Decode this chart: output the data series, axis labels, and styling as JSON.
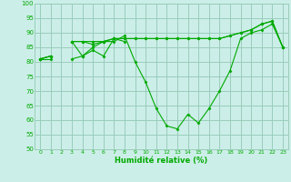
{
  "background_color": "#cceee8",
  "grid_color": "#99ccbb",
  "line_color": "#00aa00",
  "marker_color": "#00aa00",
  "xlabel": "Humidité relative (%)",
  "xlabel_color": "#00aa00",
  "ylim": [
    50,
    100
  ],
  "xlim": [
    -0.5,
    23.5
  ],
  "yticks": [
    50,
    55,
    60,
    65,
    70,
    75,
    80,
    85,
    90,
    95,
    100
  ],
  "xticks": [
    0,
    1,
    2,
    3,
    4,
    5,
    6,
    7,
    8,
    9,
    10,
    11,
    12,
    13,
    14,
    15,
    16,
    17,
    18,
    19,
    20,
    21,
    22,
    23
  ],
  "series": [
    [
      81,
      82,
      null,
      87,
      87,
      87,
      87,
      88,
      88,
      88,
      88,
      88,
      88,
      88,
      88,
      88,
      88,
      88,
      89,
      90,
      91,
      93,
      94,
      85
    ],
    [
      81,
      82,
      null,
      87,
      87,
      86,
      87,
      88,
      88,
      88,
      88,
      88,
      88,
      88,
      88,
      88,
      88,
      88,
      89,
      90,
      91,
      93,
      94,
      85
    ],
    [
      81,
      82,
      null,
      87,
      82,
      85,
      87,
      87,
      89,
      80,
      73,
      64,
      58,
      57,
      62,
      59,
      64,
      70,
      77,
      88,
      90,
      91,
      93,
      85
    ],
    [
      81,
      81,
      null,
      81,
      82,
      84,
      82,
      88,
      87,
      null,
      null,
      null,
      null,
      null,
      null,
      null,
      null,
      null,
      null,
      null,
      null,
      null,
      null,
      null
    ]
  ]
}
